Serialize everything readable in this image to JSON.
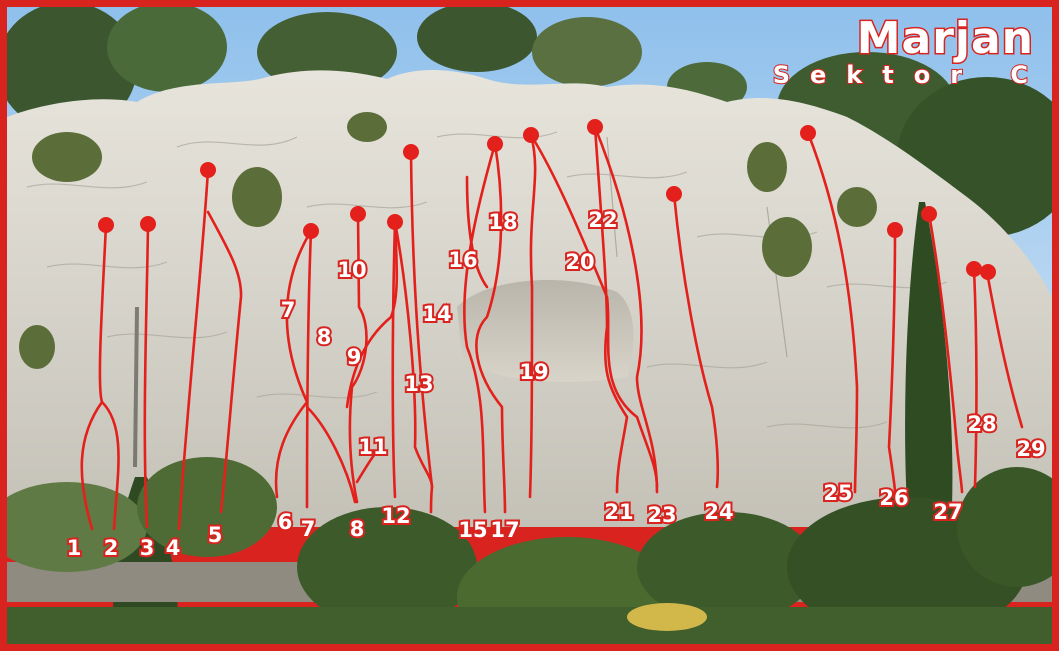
{
  "title": {
    "crag": "Marjan",
    "sector": "Sektor C"
  },
  "routes": [
    {
      "label": "1"
    },
    {
      "label": "2"
    },
    {
      "label": "3"
    },
    {
      "label": "4"
    },
    {
      "label": "5"
    },
    {
      "label": "6"
    },
    {
      "label": "7"
    },
    {
      "label": "7"
    },
    {
      "label": "8"
    },
    {
      "label": "8"
    },
    {
      "label": "9"
    },
    {
      "label": "10"
    },
    {
      "label": "11"
    },
    {
      "label": "12"
    },
    {
      "label": "13"
    },
    {
      "label": "14"
    },
    {
      "label": "15"
    },
    {
      "label": "16"
    },
    {
      "label": "17"
    },
    {
      "label": "18"
    },
    {
      "label": "19"
    },
    {
      "label": "20"
    },
    {
      "label": "21"
    },
    {
      "label": "22"
    },
    {
      "label": "23"
    },
    {
      "label": "24"
    },
    {
      "label": "25"
    },
    {
      "label": "26"
    },
    {
      "label": "27"
    },
    {
      "label": "28"
    },
    {
      "label": "29"
    }
  ],
  "colors": {
    "frame": "#d8231f",
    "route": "#e3201b",
    "sky": "#9ec9ee",
    "rock": "#d9d6ce",
    "foliage": "#3d5a2a"
  }
}
